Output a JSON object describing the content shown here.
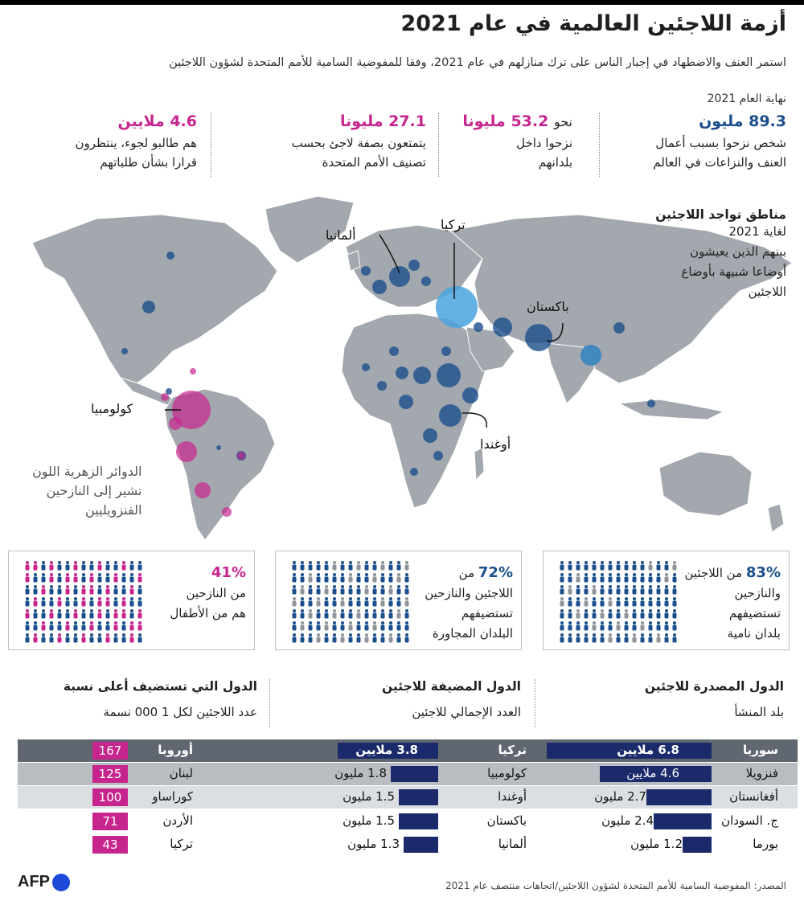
{
  "title": "أزمة اللاجئين العالمية في عام 2021",
  "subtitle": "استمر العنف والاضطهاد في إجبار الناس على ترك منازلهم في عام 2021، وفقا للمفوضية السامية للأمم المتحدة لشؤون اللاجئين",
  "year_label": "نهاية العام 2021",
  "stats": [
    {
      "value": "89.3 مليون",
      "prefix": "",
      "desc1": "شخص نزحوا بسبب أعمال",
      "desc2": "العنف والنزاعات في العالم",
      "color": "#1b4f8c"
    },
    {
      "value": "53.2 مليونا",
      "prefix": "نحو",
      "desc1": "نزحوا داخل",
      "desc2": "بلدانهم",
      "color": "#c7258e"
    },
    {
      "value": "27.1 مليونا",
      "prefix": "",
      "desc1": "يتمتعون بصفة لاجئ بحسب",
      "desc2": "تصنيف الأمم المتحدة",
      "color": "#c7258e"
    },
    {
      "value": "4.6 ملايين",
      "prefix": "",
      "desc1": "هم طالبو لجوء، ينتظرون",
      "desc2": "قرارا بشأن طلباتهم",
      "color": "#c7258e"
    }
  ],
  "map_legend": {
    "heading": "مناطق تواجد اللاجئين",
    "line1": "لغاية 2021",
    "line2": "بينهم الذين يعيشون",
    "line3": "أوضاعا شبيهة بأوضاع",
    "line4": "اللاجئين"
  },
  "map_labels": {
    "germany": "ألمانيا",
    "turkey": "تركيا",
    "pakistan": "باكستان",
    "uganda": "أوغندا",
    "colombia": "كولومبيا"
  },
  "map_note": {
    "line1": "الدوائر الزهرية اللون",
    "line2": "تشير إلى النازحين",
    "line3": "الفنزويليين"
  },
  "colors": {
    "land": "#a3a8ae",
    "refugee_circle": "#1b4f8c",
    "venezuelan_circle": "#c7258e",
    "bar": "#1b2a6b",
    "rate_badge": "#c7258e"
  },
  "panels": [
    {
      "pct": "83%",
      "pct_suffix": "من اللاجئين",
      "l2": "والنازحين",
      "l3": "تستضيفهم",
      "l4": "بلدان نامية",
      "highlight_share": 0.83
    },
    {
      "pct": "72%",
      "pct_suffix": "من",
      "l2": "اللاجئين والنازحين",
      "l3": "تستضيفهم",
      "l4": "البلدان المجاورة",
      "highlight_share": 0.72
    },
    {
      "pct": "41%",
      "pct_suffix": "",
      "l2": "من النازحين",
      "l3": "هم من الأطفال",
      "l4": "",
      "highlight_share": 0.41
    }
  ],
  "chart_data": [
    {
      "type": "bar",
      "title": "الدول المصدرة للاجئين",
      "subtitle": "بلد المنشأ",
      "categories": [
        "سوريا",
        "فنزويلا",
        "أفغانستان",
        "ج. السودان",
        "بورما"
      ],
      "values": [
        6.8,
        4.6,
        2.7,
        2.4,
        1.2
      ],
      "value_labels": [
        "6.8 ملايين",
        "4.6 ملايين",
        "2.7 مليون",
        "2.4 مليون",
        "1.2 مليون"
      ]
    },
    {
      "type": "bar",
      "title": "الدول المضيفة للاجئين",
      "subtitle": "العدد الإجمالي للاجئين",
      "categories": [
        "تركيا",
        "كولومبيا",
        "أوغندا",
        "باكستان",
        "ألمانيا"
      ],
      "values": [
        3.8,
        1.8,
        1.5,
        1.5,
        1.3
      ],
      "value_labels": [
        "3.8 ملايين",
        "1.8 مليون",
        "1.5 مليون",
        "1.5 مليون",
        "1.3 مليون"
      ]
    },
    {
      "type": "table",
      "title": "الدول التي تستضيف أعلى نسبة",
      "subtitle": "عدد اللاجئين لكل 1 000 نسمة",
      "categories": [
        "أوروبا",
        "لبنان",
        "كوراساو",
        "الأردن",
        "تركيا"
      ],
      "values": [
        167,
        125,
        100,
        71,
        43
      ]
    }
  ],
  "footer": {
    "source": "المصدر: المفوضية السامية للأمم المتحدة لشؤون اللاجئين/اتجاهات منتصف عام 2021",
    "logo": "AFP"
  }
}
